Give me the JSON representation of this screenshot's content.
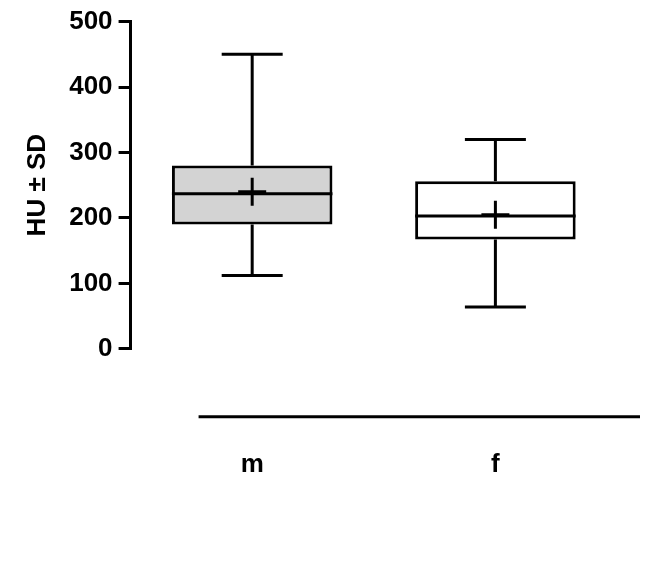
{
  "chart_data": {
    "type": "box",
    "ylabel": "HU ± SD",
    "categories": [
      "m",
      "f"
    ],
    "min": [
      112,
      64
    ],
    "q1": [
      190,
      167
    ],
    "median": [
      237,
      203
    ],
    "q3": [
      280,
      256
    ],
    "max": [
      450,
      320
    ],
    "mean": [
      240,
      205
    ],
    "marker": "plus",
    "colors": [
      "#d3d3d3",
      "#ffffff"
    ],
    "ylim": [
      0,
      500
    ],
    "yticks": [
      0,
      100,
      200,
      300,
      400,
      500
    ],
    "grid": false
  }
}
